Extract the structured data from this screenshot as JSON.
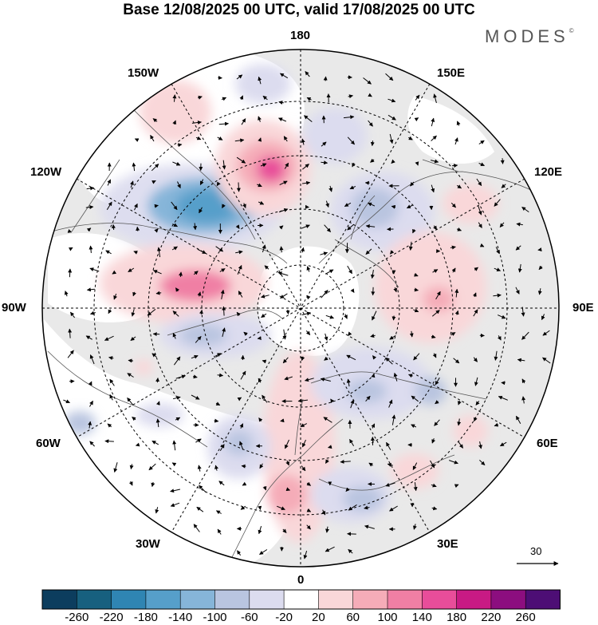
{
  "title": "Base 12/08/2025 00 UTC, valid 17/08/2025 00 UTC",
  "brand": "MODES",
  "brand_mark": "©",
  "longitude_labels": {
    "top": "180",
    "bottom": "0",
    "left": "90W",
    "right": "90E",
    "upper_left_1": "150W",
    "upper_left_2": "120W",
    "upper_right_1": "150E",
    "upper_right_2": "120E",
    "lower_left_1": "60W",
    "lower_left_2": "30W",
    "lower_right_1": "60E",
    "lower_right_2": "30E"
  },
  "reference_vector_label": "30",
  "colorbar": {
    "ticks": [
      "-260",
      "-220",
      "-180",
      "-140",
      "-100",
      "-60",
      "-20",
      "20",
      "60",
      "100",
      "140",
      "180",
      "220",
      "260"
    ],
    "colors": [
      "#0c3d5e",
      "#17607f",
      "#2f85b3",
      "#569fca",
      "#86b5d9",
      "#b9c5e0",
      "#dcdcef",
      "#ffffff",
      "#f9d7d9",
      "#f5acb8",
      "#f07fa4",
      "#e84d9a",
      "#c81a84",
      "#8c0e7f",
      "#4d0e75"
    ]
  },
  "colors": {
    "land": "#e9e9e9",
    "ocean": "#ffffff",
    "coast": "#555555",
    "grid": "#000000"
  }
}
